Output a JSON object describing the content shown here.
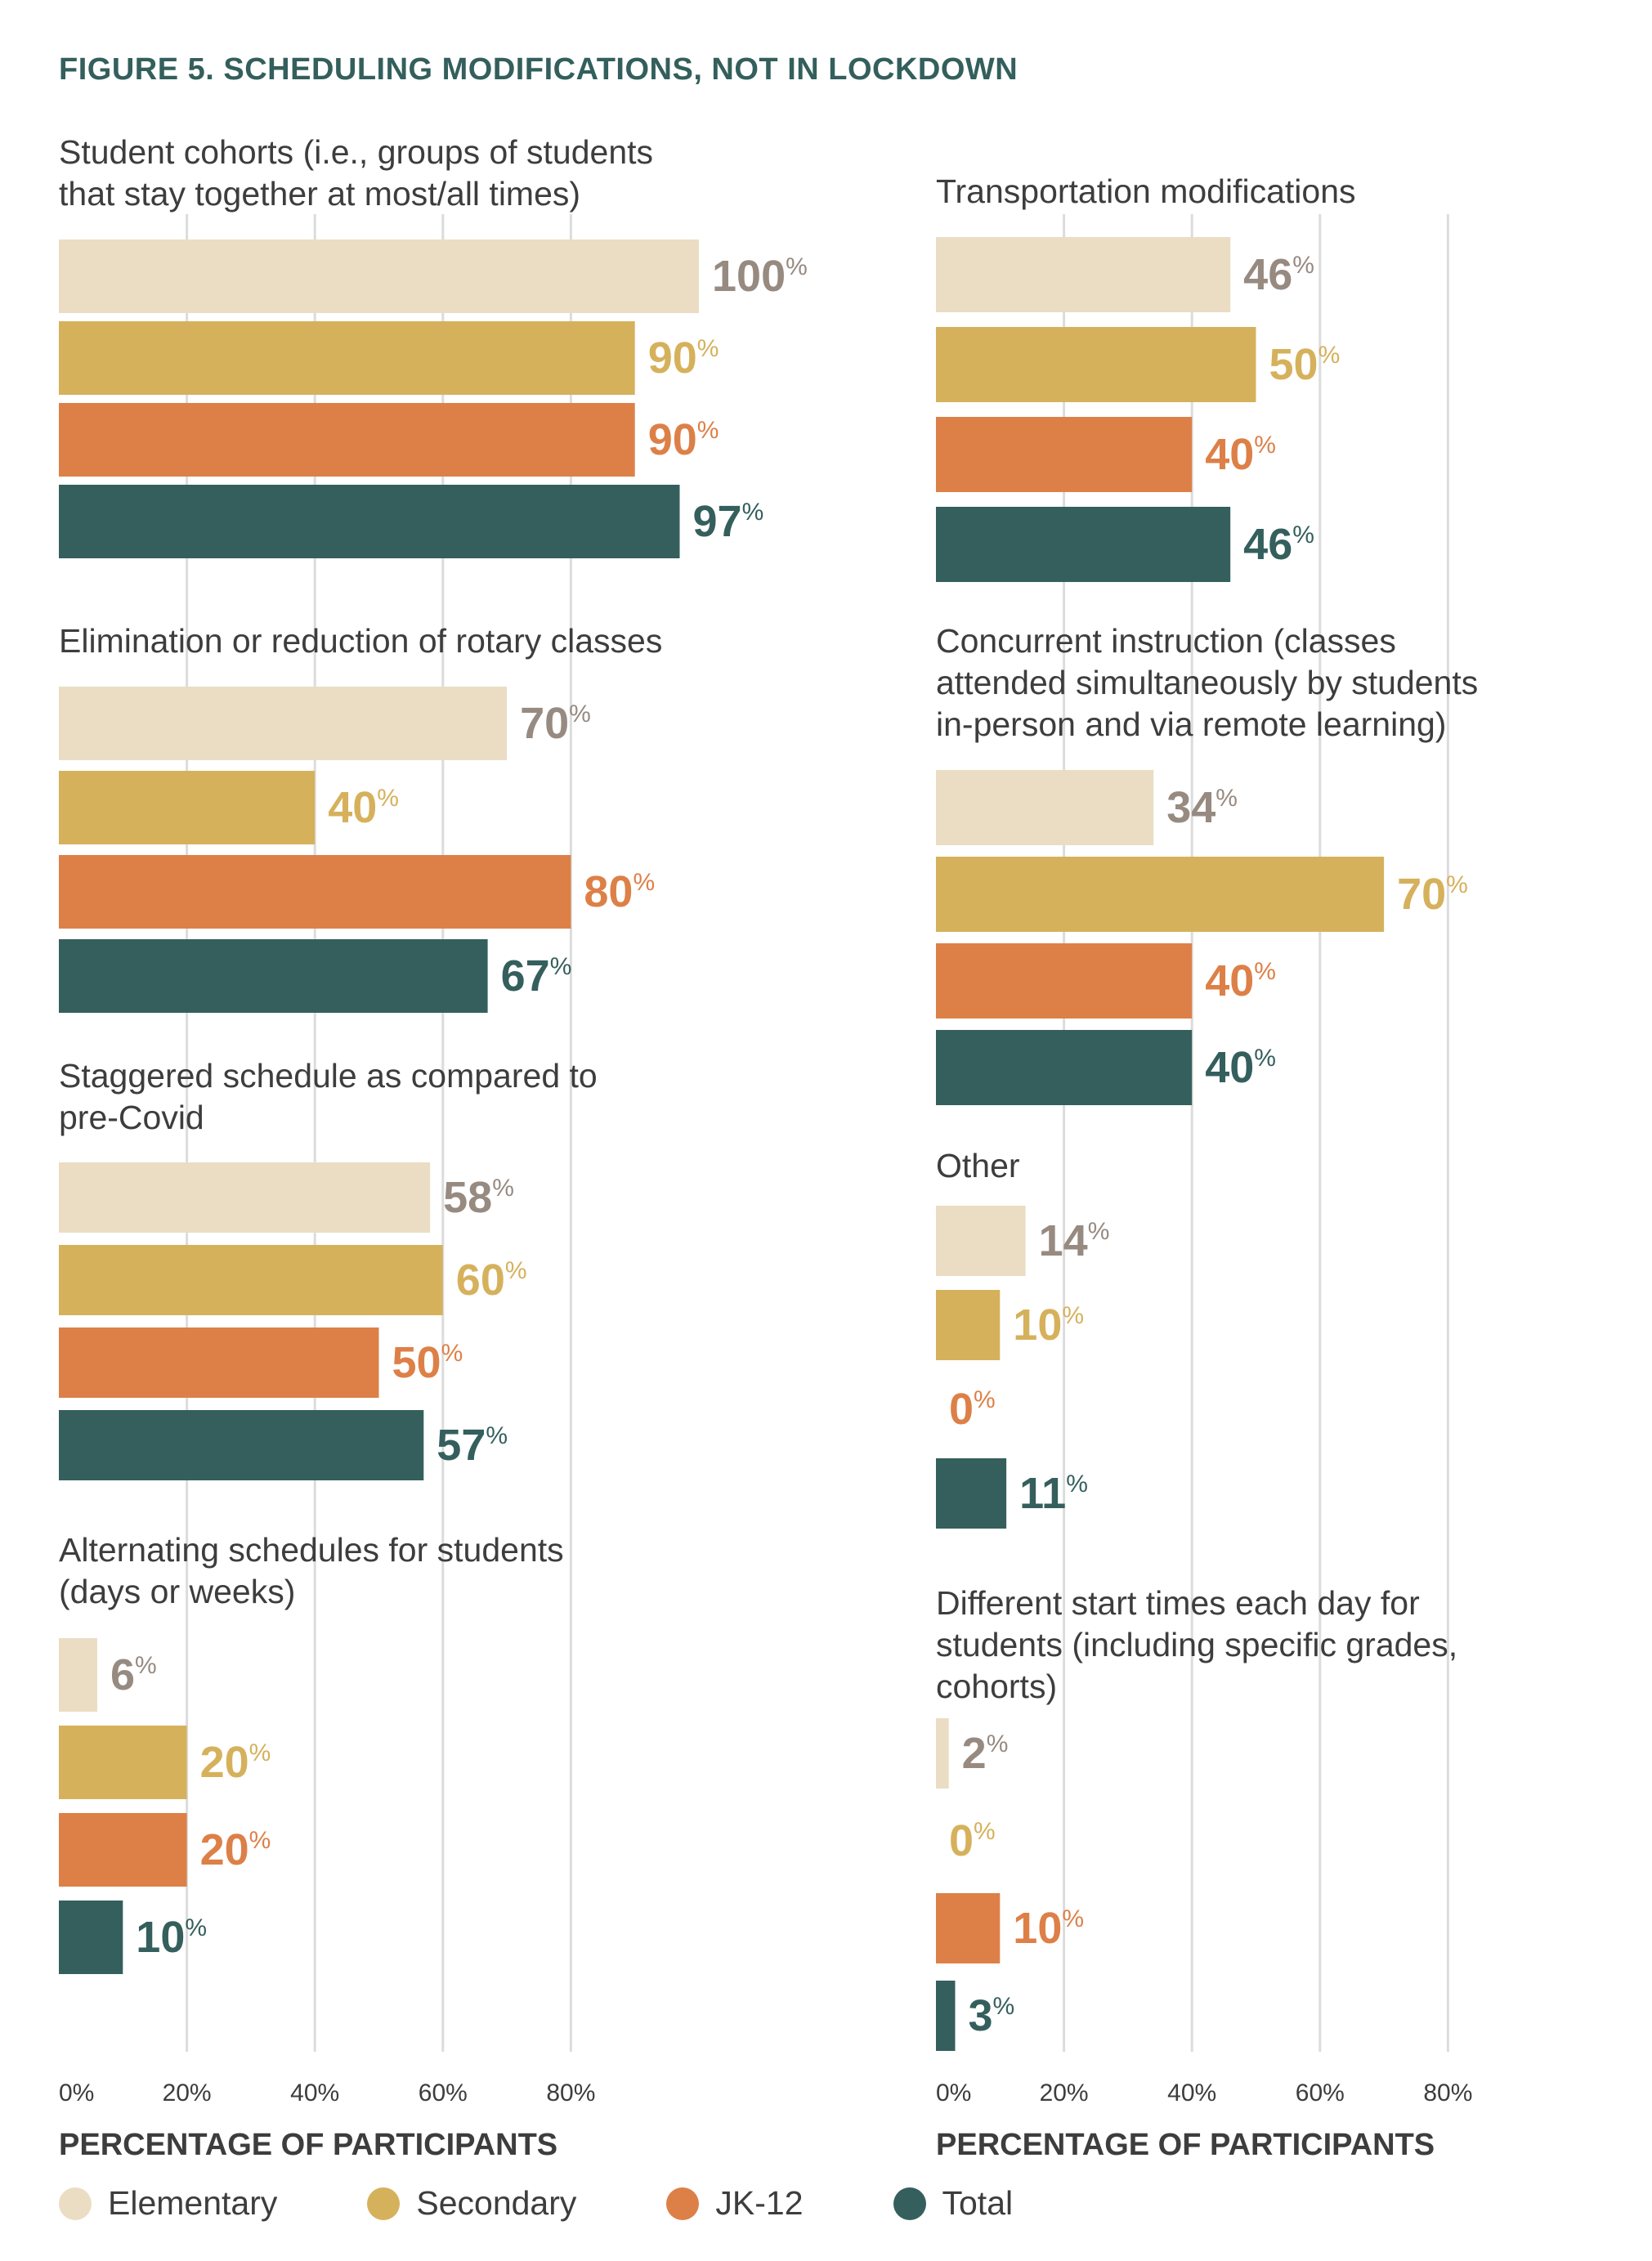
{
  "title": "FIGURE 5. SCHEDULING MODIFICATIONS, NOT IN LOCKDOWN",
  "chart_data": [
    {
      "type": "bar",
      "orientation": "horizontal",
      "panel": "left",
      "xlabel": "PERCENTAGE OF PARTICIPANTS",
      "xlim": [
        0,
        100
      ],
      "xticks": [
        "0%",
        "20%",
        "40%",
        "60%",
        "80%"
      ],
      "grid": true,
      "series_names": [
        "Elementary",
        "Secondary",
        "JK-12",
        "Total"
      ],
      "groups": [
        {
          "category": "Student cohorts (i.e., groups of students that stay together at most/all times)",
          "label_lines": [
            "Student cohorts (i.e., groups of students",
            "that stay together at most/all times)"
          ],
          "values": [
            100,
            90,
            90,
            97
          ]
        },
        {
          "category": "Elimination or reduction of rotary classes",
          "label_lines": [
            "Elimination or reduction of rotary classes"
          ],
          "values": [
            70,
            40,
            80,
            67
          ]
        },
        {
          "category": "Staggered schedule as compared to pre-Covid",
          "label_lines": [
            "Staggered schedule as compared to",
            "pre-Covid"
          ],
          "values": [
            58,
            60,
            50,
            57
          ]
        },
        {
          "category": "Alternating schedules for students (days or weeks)",
          "label_lines": [
            "Alternating schedules for students",
            "(days or weeks)"
          ],
          "values": [
            6,
            20,
            20,
            10
          ]
        }
      ]
    },
    {
      "type": "bar",
      "orientation": "horizontal",
      "panel": "right",
      "xlabel": "PERCENTAGE OF PARTICIPANTS",
      "xlim": [
        0,
        100
      ],
      "xticks": [
        "0%",
        "20%",
        "40%",
        "60%",
        "80%"
      ],
      "grid": true,
      "series_names": [
        "Elementary",
        "Secondary",
        "JK-12",
        "Total"
      ],
      "groups": [
        {
          "category": "Transportation modifications",
          "label_lines": [
            "Transportation modifications"
          ],
          "values": [
            46,
            50,
            40,
            46
          ]
        },
        {
          "category": "Concurrent instruction (classes attended simultaneously by students in-person and via remote learning)",
          "label_lines": [
            "Concurrent instruction (classes",
            "attended simultaneously by students",
            "in-person and via remote learning)"
          ],
          "values": [
            34,
            70,
            40,
            40
          ]
        },
        {
          "category": "Other",
          "label_lines": [
            "Other"
          ],
          "values": [
            14,
            10,
            0,
            11
          ]
        },
        {
          "category": "Different start times each day for students (including specific grades, cohorts)",
          "label_lines": [
            "Different start times each day for",
            "students (including specific grades,",
            "cohorts)"
          ],
          "values": [
            2,
            0,
            10,
            3
          ]
        }
      ]
    }
  ],
  "legend": [
    {
      "name": "Elementary",
      "color": "#eaddc3",
      "label_color": "#978a80"
    },
    {
      "name": "Secondary",
      "color": "#d6b15c",
      "label_color": "#d6b15c"
    },
    {
      "name": "JK-12",
      "color": "#dd8048",
      "label_color": "#dd8048"
    },
    {
      "name": "Total",
      "color": "#345f5d",
      "label_color": "#345f5d"
    }
  ]
}
